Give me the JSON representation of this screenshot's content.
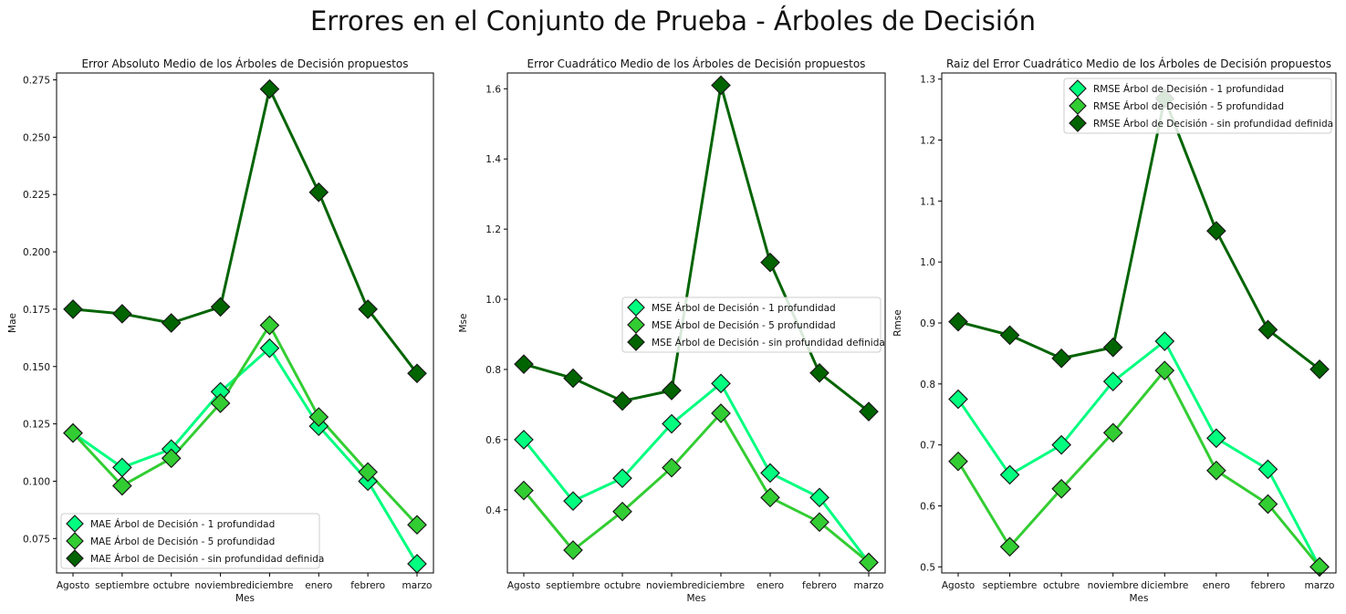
{
  "figure": {
    "suptitle": "Errores en el Conjunto de Prueba - Árboles de Decisión"
  },
  "colors": {
    "series": [
      "#00ff7f",
      "#32cd32",
      "#006400"
    ]
  },
  "chart_data": [
    {
      "type": "line",
      "title": "Error Absoluto Medio de los Árboles de Decisión propuestos",
      "xlabel": "Mes",
      "ylabel": "Mae",
      "categories": [
        "Agosto",
        "septiembre",
        "octubre",
        "noviembre",
        "diciembre",
        "enero",
        "febrero",
        "marzo"
      ],
      "ylim": [
        0.06,
        0.278
      ],
      "yticks": [
        0.075,
        0.1,
        0.125,
        0.15,
        0.175,
        0.2,
        0.225,
        0.25,
        0.275
      ],
      "ytick_labels": [
        "0.075",
        "0.100",
        "0.125",
        "0.150",
        "0.175",
        "0.200",
        "0.225",
        "0.250",
        "0.275"
      ],
      "legend_position": "lower-left",
      "series": [
        {
          "name": "MAE Árbol de Decisión - 1 profundidad",
          "values": [
            0.121,
            0.106,
            0.114,
            0.139,
            0.158,
            0.124,
            0.1,
            0.064
          ]
        },
        {
          "name": "MAE Árbol de Decisión - 5 profundidad",
          "values": [
            0.121,
            0.098,
            0.11,
            0.134,
            0.168,
            0.128,
            0.104,
            0.081
          ]
        },
        {
          "name": "MAE Árbol de Decisión - sin profundidad definida",
          "values": [
            0.175,
            0.173,
            0.169,
            0.176,
            0.271,
            0.226,
            0.175,
            0.147
          ]
        }
      ]
    },
    {
      "type": "line",
      "title": "Error Cuadrático Medio de los Árboles de Decisión propuestos",
      "xlabel": "Mes",
      "ylabel": "Mse",
      "categories": [
        "Agosto",
        "septiembre",
        "octubre",
        "noviembre",
        "diciembre",
        "enero",
        "febrero",
        "marzo"
      ],
      "ylim": [
        0.22,
        1.645
      ],
      "yticks": [
        0.4,
        0.6,
        0.8,
        1.0,
        1.2,
        1.4,
        1.6
      ],
      "ytick_labels": [
        "0.4",
        "0.6",
        "0.8",
        "1.0",
        "1.2",
        "1.4",
        "1.6"
      ],
      "legend_position": "center-right",
      "series": [
        {
          "name": "MSE Árbol de Decisión - 1 profundidad",
          "values": [
            0.6,
            0.425,
            0.49,
            0.645,
            0.76,
            0.505,
            0.435,
            0.25
          ]
        },
        {
          "name": "MSE Árbol de Decisión - 5 profundidad",
          "values": [
            0.455,
            0.285,
            0.395,
            0.52,
            0.675,
            0.435,
            0.365,
            0.25
          ]
        },
        {
          "name": "MSE Árbol de Decisión - sin profundidad definida",
          "values": [
            0.815,
            0.775,
            0.71,
            0.74,
            1.61,
            1.105,
            0.79,
            0.68
          ]
        }
      ]
    },
    {
      "type": "line",
      "title": "Raiz del Error Cuadrático Medio de los Árboles de Decisión propuestos",
      "xlabel": "Mes",
      "ylabel": "Rmse",
      "categories": [
        "Agosto",
        "septiembre",
        "octubre",
        "noviembre",
        "diciembre",
        "enero",
        "febrero",
        "marzo"
      ],
      "ylim": [
        0.49,
        1.31
      ],
      "yticks": [
        0.5,
        0.6,
        0.7,
        0.8,
        0.9,
        1.0,
        1.1,
        1.2,
        1.3
      ],
      "ytick_labels": [
        "0.5",
        "0.6",
        "0.7",
        "0.8",
        "0.9",
        "1.0",
        "1.1",
        "1.2",
        "1.3"
      ],
      "legend_position": "top-right",
      "series": [
        {
          "name": "RMSE Árbol de Decisión - 1 profundidad",
          "values": [
            0.775,
            0.651,
            0.7,
            0.804,
            0.87,
            0.711,
            0.66,
            0.5
          ]
        },
        {
          "name": "RMSE Árbol de Decisión - 5 profundidad",
          "values": [
            0.673,
            0.533,
            0.628,
            0.72,
            0.822,
            0.658,
            0.603,
            0.5
          ]
        },
        {
          "name": "RMSE Árbol de Decisión - sin profundidad definida",
          "values": [
            0.902,
            0.88,
            0.842,
            0.86,
            1.268,
            1.051,
            0.889,
            0.824
          ]
        }
      ]
    }
  ]
}
